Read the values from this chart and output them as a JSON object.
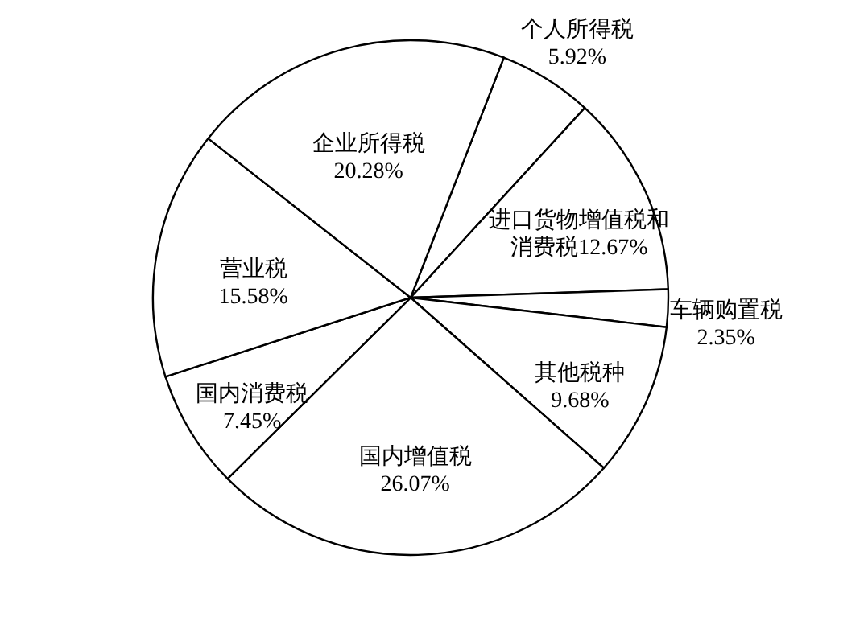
{
  "chart_data": {
    "type": "pie",
    "categories": [
      "个人所得税",
      "进口货物增值税和消费税",
      "车辆购置税",
      "其他税种",
      "国内增值税",
      "国内消费税",
      "营业税",
      "企业所得税"
    ],
    "values": [
      5.92,
      12.67,
      2.35,
      9.68,
      26.07,
      7.45,
      15.58,
      20.28
    ],
    "value_labels": [
      "5.92%",
      "12.67%",
      "2.35%",
      "9.68%",
      "26.07%",
      "7.45%",
      "15.58%",
      "20.28%"
    ],
    "colors": [
      "#ffffff",
      "#ffffff",
      "#ffffff",
      "#ffffff",
      "#ffffff",
      "#ffffff",
      "#ffffff",
      "#ffffff"
    ]
  }
}
